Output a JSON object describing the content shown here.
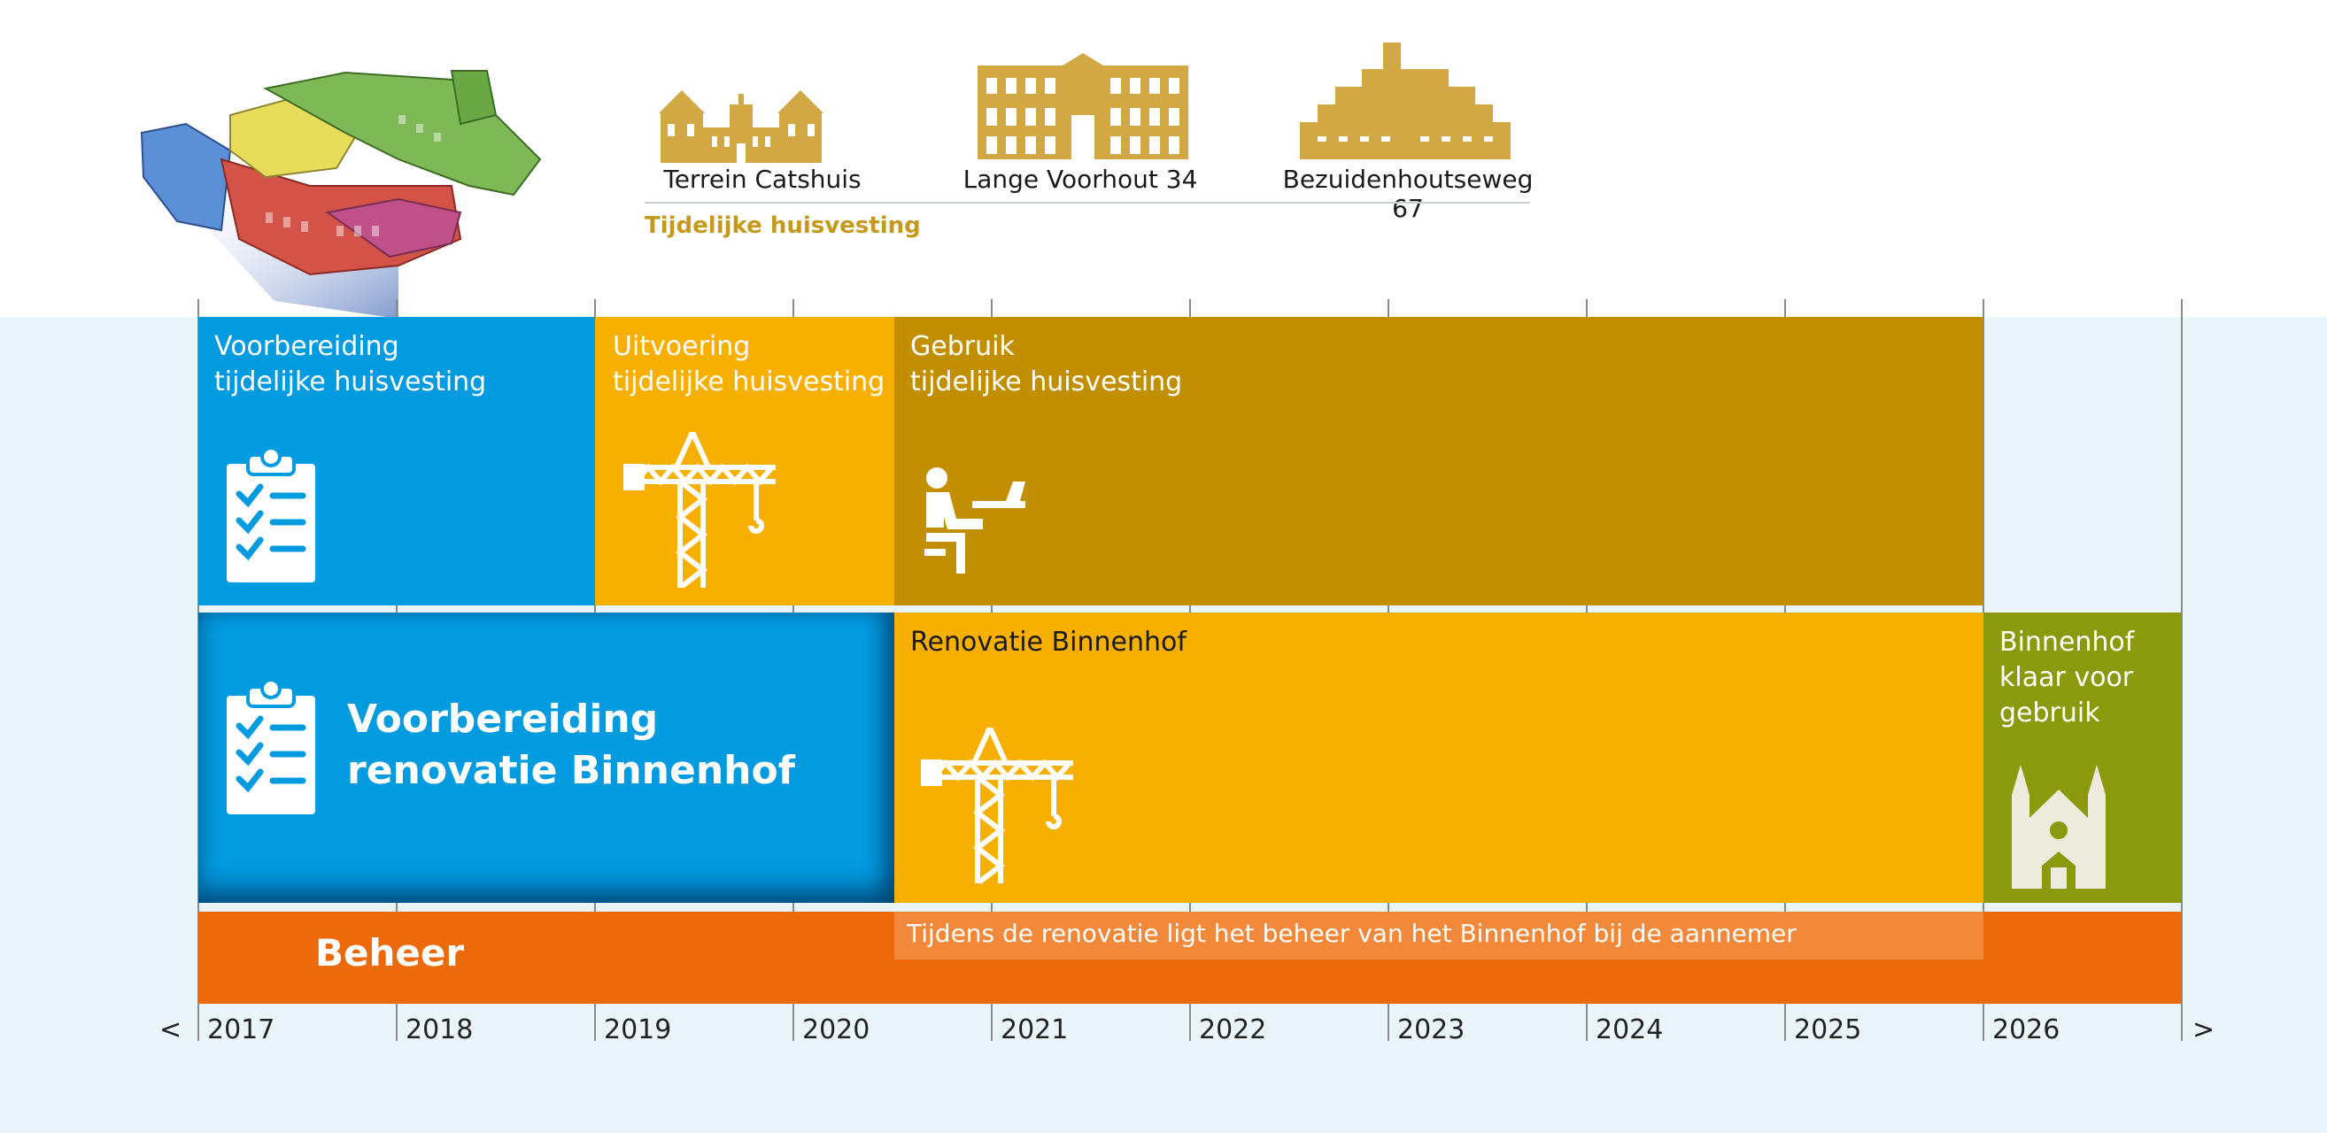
{
  "buildings": [
    {
      "label": "Terrein Catshuis"
    },
    {
      "label": "Lange Voorhout 34"
    },
    {
      "label": "Bezuidenhoutseweg 67"
    }
  ],
  "temp_housing_caption": "Tijdelijke huisvesting",
  "phases": {
    "prep_temp": "Voorbereiding\ntijdelijke huisvesting",
    "exec_temp": "Uitvoering\ntijdelijke huisvesting",
    "use_temp": "Gebruik\ntijdelijke huisvesting",
    "prep_renovation": "Voorbereiding\nrenovatie Binnenhof",
    "renovation": "Renovatie Binnenhof",
    "ready": "Binnenhof\nklaar voor\ngebruik",
    "beheer": "Beheer",
    "beheer_note": "Tijdens de renovatie ligt het beheer van het Binnenhof bij de aannemer"
  },
  "timeline": {
    "years": [
      "2017",
      "2018",
      "2019",
      "2020",
      "2021",
      "2022",
      "2023",
      "2024",
      "2025",
      "2026"
    ],
    "prev": "<",
    "next": ">"
  },
  "colors": {
    "blue": "#039be0",
    "light_orange": "#f8b000",
    "dark_gold": "#c28f00",
    "olive": "#8a9a0c",
    "orange": "#ec6a0b",
    "gold_icon": "#d2a845",
    "caption_gold": "#c59a1c"
  },
  "icons": [
    "binnenhof-complex-illustration",
    "catshuis-icon",
    "lange-voorhout-icon",
    "bezuidenhoutseweg-icon",
    "clipboard-checklist-icon",
    "crane-icon",
    "person-laptop-icon",
    "church-icon"
  ]
}
